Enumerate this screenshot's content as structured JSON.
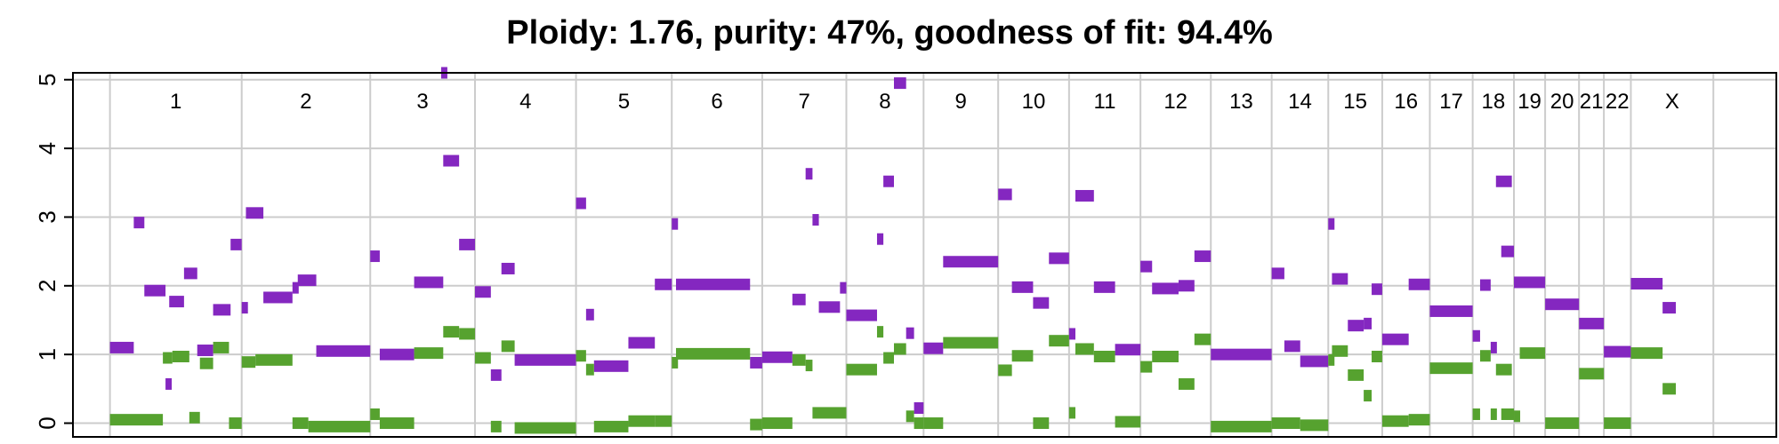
{
  "chart_data": {
    "type": "scatter",
    "title": "Ploidy: 1.76, purity: 47%, goodness of fit: 94.4%",
    "xlabel": "",
    "ylabel": "",
    "ylim": [
      -0.2,
      5.1
    ],
    "yticks": [
      "0",
      "1",
      "2",
      "3",
      "4",
      "5"
    ],
    "grid": true,
    "colors": {
      "major": "#8427c0",
      "minor": "#56a22f",
      "grid": "#cccccc"
    },
    "chromosomes": [
      "1",
      "2",
      "3",
      "4",
      "5",
      "6",
      "7",
      "8",
      "9",
      "10",
      "11",
      "12",
      "13",
      "14",
      "15",
      "16",
      "17",
      "18",
      "19",
      "20",
      "21",
      "22",
      "X"
    ],
    "chromosome_bounds": [
      0,
      249,
      492,
      690,
      881,
      1062,
      1233,
      1392,
      1538,
      1679,
      1813,
      1948,
      2081,
      2196,
      2303,
      2405,
      2495,
      2576,
      2654,
      2713,
      2777,
      2824,
      2875,
      3031
    ],
    "genome_range": [
      -70,
      3150
    ],
    "series": [
      {
        "key": "major",
        "segments": [
          [
            0,
            45,
            1.1
          ],
          [
            45,
            65,
            2.92
          ],
          [
            65,
            105,
            1.93
          ],
          [
            105,
            112,
            0.57
          ],
          [
            112,
            140,
            1.77
          ],
          [
            140,
            165,
            2.18
          ],
          [
            165,
            195,
            1.06
          ],
          [
            195,
            228,
            1.65
          ],
          [
            228,
            249,
            2.6
          ],
          [
            249,
            257,
            1.68
          ],
          [
            257,
            290,
            3.06
          ],
          [
            290,
            345,
            1.83
          ],
          [
            345,
            355,
            1.97
          ],
          [
            355,
            390,
            2.08
          ],
          [
            390,
            492,
            1.05
          ],
          [
            492,
            510,
            2.43
          ],
          [
            510,
            575,
            1.0
          ],
          [
            575,
            630,
            2.05
          ],
          [
            626,
            630,
            5.1
          ],
          [
            630,
            660,
            3.82
          ],
          [
            660,
            690,
            2.6
          ],
          [
            690,
            720,
            1.91
          ],
          [
            720,
            740,
            0.7
          ],
          [
            740,
            765,
            2.25
          ],
          [
            765,
            881,
            0.92
          ],
          [
            881,
            900,
            3.2
          ],
          [
            900,
            915,
            1.58
          ],
          [
            915,
            980,
            0.83
          ],
          [
            980,
            1030,
            1.17
          ],
          [
            1030,
            1062,
            2.02
          ],
          [
            1062,
            1070,
            2.9
          ],
          [
            1070,
            1210,
            2.02
          ],
          [
            1210,
            1233,
            0.88
          ],
          [
            1233,
            1290,
            0.96
          ],
          [
            1290,
            1315,
            1.8
          ],
          [
            1315,
            1328,
            3.63
          ],
          [
            1328,
            1340,
            2.96
          ],
          [
            1340,
            1380,
            1.69
          ],
          [
            1380,
            1392,
            1.97
          ],
          [
            1392,
            1450,
            1.57
          ],
          [
            1450,
            1462,
            2.68
          ],
          [
            1462,
            1482,
            3.52
          ],
          [
            1482,
            1505,
            4.95
          ],
          [
            1505,
            1520,
            1.31
          ],
          [
            1520,
            1538,
            0.22
          ],
          [
            1538,
            1575,
            1.09
          ],
          [
            1575,
            1679,
            2.35
          ],
          [
            1679,
            1705,
            3.33
          ],
          [
            1705,
            1745,
            1.98
          ],
          [
            1745,
            1775,
            1.75
          ],
          [
            1775,
            1813,
            2.4
          ],
          [
            1813,
            1825,
            1.3
          ],
          [
            1825,
            1860,
            3.31
          ],
          [
            1860,
            1900,
            1.98
          ],
          [
            1900,
            1948,
            1.07
          ],
          [
            1948,
            1970,
            2.28
          ],
          [
            1970,
            2020,
            1.96
          ],
          [
            2020,
            2050,
            2.0
          ],
          [
            2050,
            2081,
            2.43
          ],
          [
            2081,
            2196,
            1.0
          ],
          [
            2196,
            2220,
            2.18
          ],
          [
            2220,
            2250,
            1.12
          ],
          [
            2250,
            2303,
            0.9
          ],
          [
            2303,
            2310,
            2.9
          ],
          [
            2310,
            2340,
            2.1
          ],
          [
            2340,
            2370,
            1.42
          ],
          [
            2370,
            2385,
            1.45
          ],
          [
            2385,
            2405,
            1.95
          ],
          [
            2405,
            2455,
            1.22
          ],
          [
            2455,
            2495,
            2.02
          ],
          [
            2495,
            2576,
            1.63
          ],
          [
            2576,
            2590,
            1.27
          ],
          [
            2590,
            2610,
            2.01
          ],
          [
            2610,
            2620,
            1.1
          ],
          [
            2620,
            2650,
            3.52
          ],
          [
            2630,
            2654,
            2.5
          ],
          [
            2654,
            2713,
            2.05
          ],
          [
            2713,
            2777,
            1.73
          ],
          [
            2777,
            2824,
            1.45
          ],
          [
            2824,
            2875,
            1.04
          ],
          [
            2875,
            2935,
            2.03
          ],
          [
            2935,
            2960,
            1.68
          ]
        ]
      },
      {
        "key": "minor",
        "segments": [
          [
            0,
            100,
            0.05
          ],
          [
            100,
            118,
            0.95
          ],
          [
            118,
            150,
            0.97
          ],
          [
            150,
            170,
            0.08
          ],
          [
            170,
            195,
            0.87
          ],
          [
            195,
            225,
            1.1
          ],
          [
            225,
            249,
            0.0
          ],
          [
            249,
            275,
            0.89
          ],
          [
            275,
            345,
            0.92
          ],
          [
            345,
            375,
            0.0
          ],
          [
            375,
            492,
            -0.05
          ],
          [
            492,
            510,
            0.13
          ],
          [
            510,
            575,
            0.0
          ],
          [
            575,
            630,
            1.02
          ],
          [
            630,
            660,
            1.33
          ],
          [
            660,
            690,
            1.3
          ],
          [
            690,
            720,
            0.95
          ],
          [
            720,
            740,
            -0.05
          ],
          [
            740,
            765,
            1.12
          ],
          [
            765,
            881,
            -0.07
          ],
          [
            881,
            900,
            0.98
          ],
          [
            900,
            915,
            0.78
          ],
          [
            915,
            980,
            -0.05
          ],
          [
            980,
            1030,
            0.03
          ],
          [
            1030,
            1062,
            0.03
          ],
          [
            1062,
            1070,
            0.88
          ],
          [
            1070,
            1210,
            1.01
          ],
          [
            1210,
            1233,
            -0.02
          ],
          [
            1233,
            1290,
            0.0
          ],
          [
            1290,
            1315,
            0.92
          ],
          [
            1315,
            1328,
            0.84
          ],
          [
            1328,
            1392,
            0.15
          ],
          [
            1392,
            1450,
            0.78
          ],
          [
            1450,
            1462,
            1.33
          ],
          [
            1462,
            1482,
            0.95
          ],
          [
            1482,
            1505,
            1.08
          ],
          [
            1505,
            1520,
            0.1
          ],
          [
            1520,
            1538,
            0.0
          ],
          [
            1538,
            1575,
            0.0
          ],
          [
            1575,
            1679,
            1.17
          ],
          [
            1679,
            1705,
            0.77
          ],
          [
            1705,
            1745,
            0.98
          ],
          [
            1745,
            1775,
            0.0
          ],
          [
            1775,
            1813,
            1.2
          ],
          [
            1813,
            1825,
            0.15
          ],
          [
            1825,
            1860,
            1.08
          ],
          [
            1860,
            1900,
            0.97
          ],
          [
            1900,
            1948,
            0.02
          ],
          [
            1948,
            1970,
            0.82
          ],
          [
            1970,
            2020,
            0.97
          ],
          [
            2020,
            2050,
            0.57
          ],
          [
            2050,
            2081,
            1.22
          ],
          [
            2081,
            2196,
            -0.05
          ],
          [
            2196,
            2250,
            0.0
          ],
          [
            2250,
            2303,
            -0.03
          ],
          [
            2303,
            2310,
            0.92
          ],
          [
            2310,
            2340,
            1.05
          ],
          [
            2340,
            2370,
            0.7
          ],
          [
            2370,
            2385,
            0.4
          ],
          [
            2385,
            2405,
            0.97
          ],
          [
            2405,
            2455,
            0.03
          ],
          [
            2455,
            2495,
            0.05
          ],
          [
            2495,
            2576,
            0.8
          ],
          [
            2576,
            2590,
            0.13
          ],
          [
            2590,
            2610,
            0.98
          ],
          [
            2610,
            2620,
            0.13
          ],
          [
            2620,
            2650,
            0.78
          ],
          [
            2630,
            2654,
            0.13
          ],
          [
            2654,
            2665,
            0.1
          ],
          [
            2665,
            2713,
            1.02
          ],
          [
            2713,
            2777,
            0.0
          ],
          [
            2777,
            2824,
            0.72
          ],
          [
            2824,
            2875,
            0.0
          ],
          [
            2875,
            2935,
            1.02
          ],
          [
            2935,
            2960,
            0.5
          ]
        ]
      }
    ]
  }
}
